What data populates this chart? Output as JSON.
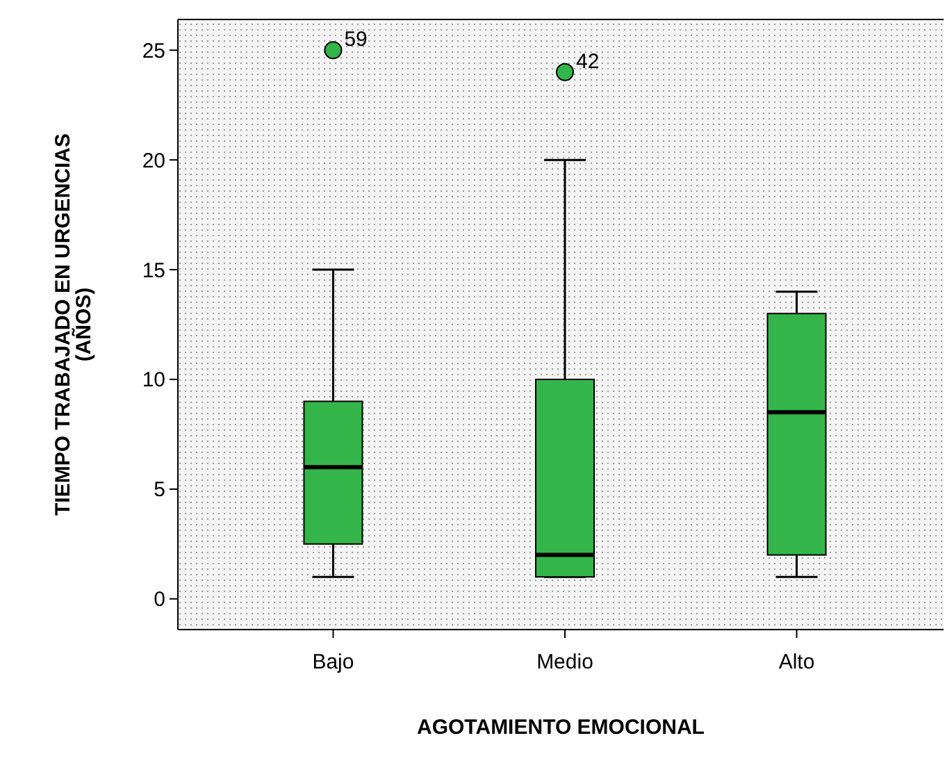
{
  "chart_data": {
    "type": "box",
    "xlabel": "AGOTAMIENTO EMOCIONAL",
    "ylabel": "TIEMPO TRABAJADO EN URGENCIAS\n(AÑOS)",
    "categories": [
      "Bajo",
      "Medio",
      "Alto"
    ],
    "color": "#33b54a",
    "ylim": [
      -1.4,
      26.4
    ],
    "yticks": [
      0,
      5,
      10,
      15,
      20,
      25
    ],
    "boxes": [
      {
        "low": 1,
        "q1": 2.5,
        "median": 6,
        "q3": 9,
        "high": 15,
        "outliers": [
          25
        ]
      },
      {
        "low": 1,
        "q1": 1,
        "median": 2,
        "q3": 10,
        "high": 20,
        "outliers": [
          24
        ]
      },
      {
        "low": 1,
        "q1": 2,
        "median": 8.5,
        "q3": 13,
        "high": 14
      }
    ],
    "annotations": [
      "59",
      "42"
    ]
  }
}
